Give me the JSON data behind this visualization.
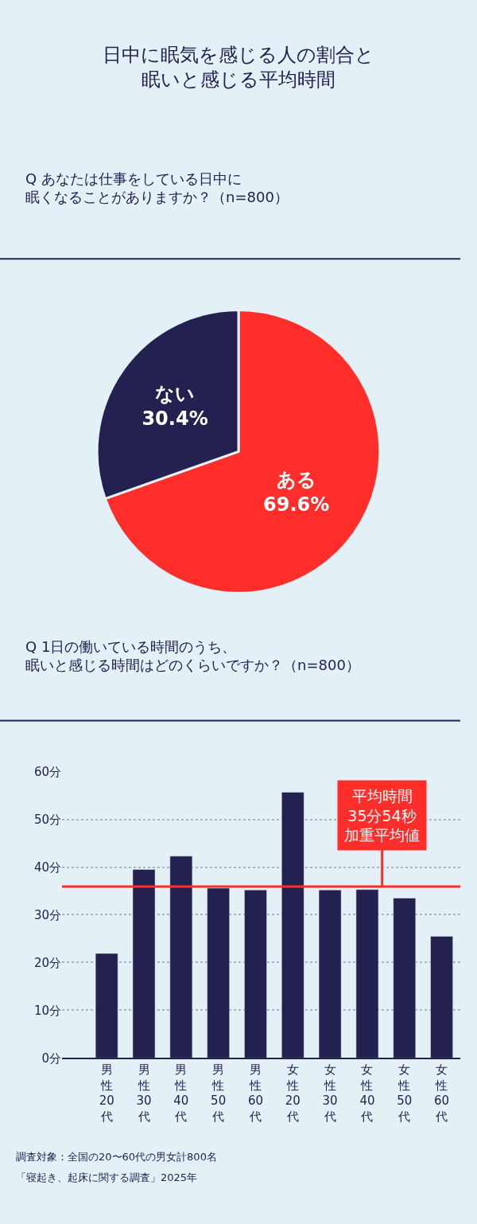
{
  "chart_data": [
    {
      "type": "pie",
      "title": "日中に眠気を感じる人の割合と眠いと感じる平均時間",
      "subtitle": "Q あなたは仕事をしている日中に眠くなることがありますか？（n=800）",
      "categories": [
        "ある",
        "ない"
      ],
      "values": [
        69.6,
        30.4
      ],
      "colors": [
        "#ff2e2b",
        "#232150"
      ],
      "value_labels": [
        "69.6%",
        "30.4%"
      ],
      "legend": false
    },
    {
      "type": "bar",
      "title": "Q 1日の働いている時間のうち、眠いと感じる時間はどのくらいですか？（n=800）",
      "categories": [
        "男性20代",
        "男性30代",
        "男性40代",
        "男性50代",
        "男性60代",
        "女性20代",
        "女性30代",
        "女性40代",
        "女性50代",
        "女性60代"
      ],
      "values": [
        21.9,
        39.5,
        42.3,
        35.6,
        35.2,
        55.7,
        35.2,
        35.3,
        33.5,
        25.5
      ],
      "color": "#232150",
      "ylim": [
        0,
        60
      ],
      "yticks": [
        {
          "value": 0,
          "label": "0分"
        },
        {
          "value": 10,
          "label": "10分"
        },
        {
          "value": 20,
          "label": "20分"
        },
        {
          "value": 30,
          "label": "30分"
        },
        {
          "value": 40,
          "label": "40分"
        },
        {
          "value": 50,
          "label": "50分"
        },
        {
          "value": 60,
          "label": "60分"
        }
      ],
      "grid": "y",
      "legend": false,
      "ref_lines": [
        {
          "axis": "y",
          "value": 35.9,
          "label": "平均時間35分54秒加重平均値",
          "color": "#ff2e2b"
        }
      ],
      "annotations": [
        "調査対象：全国の20〜60代の男女計800名",
        "「寝起き、起床に関する調査」2025年"
      ]
    }
  ]
}
